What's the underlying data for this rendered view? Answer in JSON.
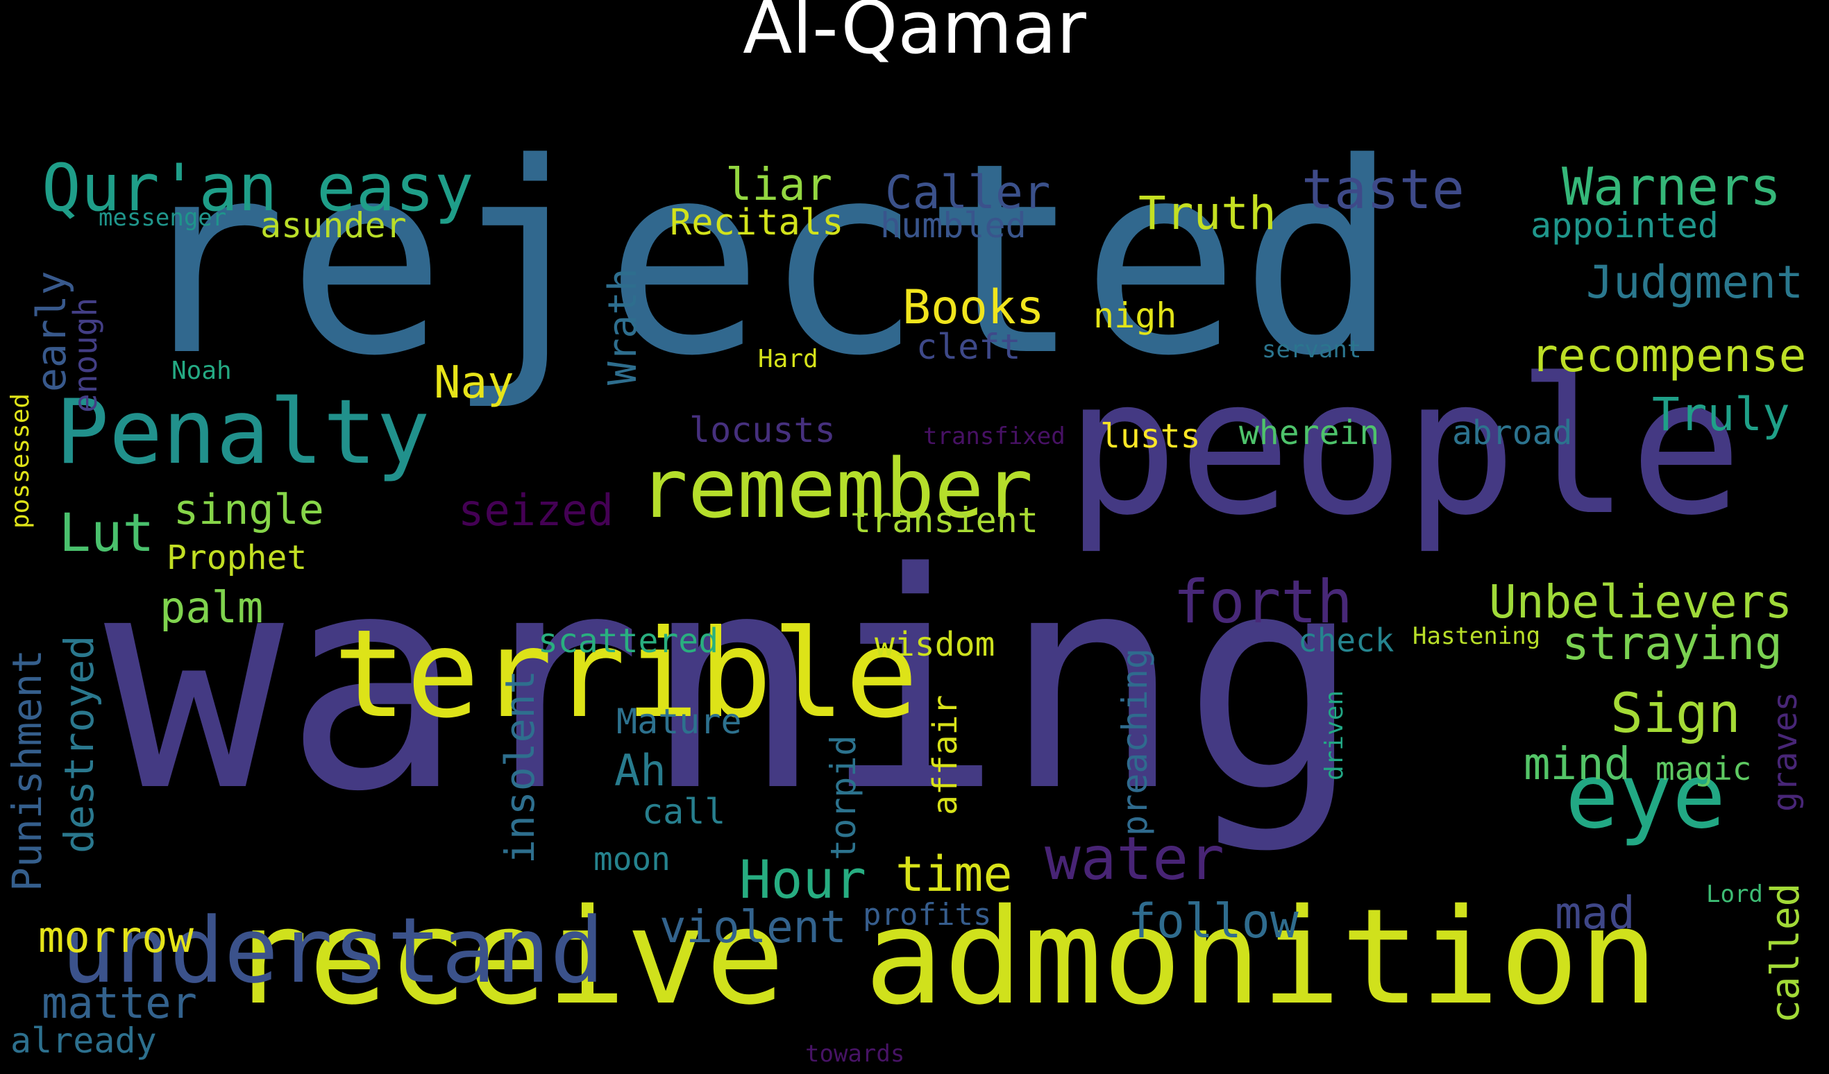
{
  "title": "Al-Qamar",
  "words": [
    {
      "text": "rejected",
      "color": "#31688e",
      "vertical": false
    },
    {
      "text": "warning",
      "color": "#443a83",
      "vertical": false
    },
    {
      "text": "people",
      "color": "#443983",
      "vertical": false
    },
    {
      "text": "receive admonition",
      "color": "#d0e11c",
      "vertical": false
    },
    {
      "text": "terrible",
      "color": "#dde318",
      "vertical": false
    },
    {
      "text": "understand",
      "color": "#3b528b",
      "vertical": false
    },
    {
      "text": "Penalty",
      "color": "#21918c",
      "vertical": false
    },
    {
      "text": "remember",
      "color": "#b5de2b",
      "vertical": false
    },
    {
      "text": "Qur'an easy",
      "color": "#1f9e89",
      "vertical": false
    },
    {
      "text": "eye",
      "color": "#22a884",
      "vertical": false
    },
    {
      "text": "forth",
      "color": "#482878",
      "vertical": false
    },
    {
      "text": "water",
      "color": "#482475",
      "vertical": false
    },
    {
      "text": "Warners",
      "color": "#35b779",
      "vertical": false
    },
    {
      "text": "taste",
      "color": "#3e4a89",
      "vertical": false
    },
    {
      "text": "Unbelievers",
      "color": "#a0da39",
      "vertical": false
    },
    {
      "text": "straying",
      "color": "#7ad151",
      "vertical": false
    },
    {
      "text": "Sign",
      "color": "#a5db36",
      "vertical": false
    },
    {
      "text": "Judgment",
      "color": "#2a788e",
      "vertical": false
    },
    {
      "text": "recompense",
      "color": "#bddf26",
      "vertical": false
    },
    {
      "text": "Truly",
      "color": "#1fa088",
      "vertical": false
    },
    {
      "text": "mind",
      "color": "#54c568",
      "vertical": false
    },
    {
      "text": "mad",
      "color": "#3f4788",
      "vertical": false
    },
    {
      "text": "Hour",
      "color": "#27ad81",
      "vertical": false
    },
    {
      "text": "time",
      "color": "#d8e219",
      "vertical": false
    },
    {
      "text": "follow",
      "color": "#2f6c8e",
      "vertical": false
    },
    {
      "text": "violent",
      "color": "#33638d",
      "vertical": false
    },
    {
      "text": "morrow",
      "color": "#e5e419",
      "vertical": false
    },
    {
      "text": "matter",
      "color": "#33628d",
      "vertical": false
    },
    {
      "text": "Lut",
      "color": "#4ac16d",
      "vertical": false
    },
    {
      "text": "single",
      "color": "#86d549",
      "vertical": false
    },
    {
      "text": "palm",
      "color": "#7fd34e",
      "vertical": false
    },
    {
      "text": "Books",
      "color": "#f1e51d",
      "vertical": false
    },
    {
      "text": "Caller",
      "color": "#3b518b",
      "vertical": false
    },
    {
      "text": "Truth",
      "color": "#c5e021",
      "vertical": false
    },
    {
      "text": "liar",
      "color": "#93d741",
      "vertical": false
    },
    {
      "text": "Nay",
      "color": "#e7e419",
      "vertical": false
    },
    {
      "text": "seized",
      "color": "#440154",
      "vertical": false
    },
    {
      "text": "Ah",
      "color": "#287c8e",
      "vertical": false
    },
    {
      "text": "Recitals",
      "color": "#d2e21b",
      "vertical": false
    },
    {
      "text": "asunder",
      "color": "#bade28",
      "vertical": false
    },
    {
      "text": "humbled",
      "color": "#39558c",
      "vertical": false
    },
    {
      "text": "cleft",
      "color": "#3e4989",
      "vertical": false
    },
    {
      "text": "nigh",
      "color": "#e2e418",
      "vertical": false
    },
    {
      "text": "appointed",
      "color": "#1f968b",
      "vertical": false
    },
    {
      "text": "lusts",
      "color": "#fde725",
      "vertical": false
    },
    {
      "text": "wherein",
      "color": "#4ec36b",
      "vertical": false
    },
    {
      "text": "abroad",
      "color": "#2c738e",
      "vertical": false
    },
    {
      "text": "locusts",
      "color": "#46307e",
      "vertical": false
    },
    {
      "text": "transient",
      "color": "#a8db34",
      "vertical": false
    },
    {
      "text": "Prophet",
      "color": "#c2df23",
      "vertical": false
    },
    {
      "text": "scattered",
      "color": "#29af7f",
      "vertical": false
    },
    {
      "text": "wisdom",
      "color": "#cde11d",
      "vertical": false
    },
    {
      "text": "check",
      "color": "#25848e",
      "vertical": false
    },
    {
      "text": "Hastening",
      "color": "#b8de29",
      "vertical": false
    },
    {
      "text": "magic",
      "color": "#5ec962",
      "vertical": false
    },
    {
      "text": "Mature",
      "color": "#2d718e",
      "vertical": false
    },
    {
      "text": "call",
      "color": "#277f8e",
      "vertical": false
    },
    {
      "text": "moon",
      "color": "#25838e",
      "vertical": false
    },
    {
      "text": "profits",
      "color": "#365d8d",
      "vertical": false
    },
    {
      "text": "already",
      "color": "#2d708e",
      "vertical": false
    },
    {
      "text": "towards",
      "color": "#471365",
      "vertical": false
    },
    {
      "text": "messenger",
      "color": "#1f958b",
      "vertical": false
    },
    {
      "text": "Noah",
      "color": "#24aa83",
      "vertical": false
    },
    {
      "text": "Hard",
      "color": "#d5e21a",
      "vertical": false
    },
    {
      "text": "servant",
      "color": "#2b758e",
      "vertical": false
    },
    {
      "text": "transfixed",
      "color": "#471164",
      "vertical": false
    },
    {
      "text": "Lord",
      "color": "#3dbc74",
      "vertical": false
    },
    {
      "text": "Punishment",
      "color": "#355f8d",
      "vertical": true
    },
    {
      "text": "destroyed",
      "color": "#2a788e",
      "vertical": true
    },
    {
      "text": "early",
      "color": "#38598c",
      "vertical": true
    },
    {
      "text": "enough",
      "color": "#433e85",
      "vertical": true
    },
    {
      "text": "possessed",
      "color": "#dfe318",
      "vertical": true
    },
    {
      "text": "Wrath",
      "color": "#2e6e8e",
      "vertical": true
    },
    {
      "text": "insolent",
      "color": "#2e6f8e",
      "vertical": true
    },
    {
      "text": "torpid",
      "color": "#2c738e",
      "vertical": true
    },
    {
      "text": "affair",
      "color": "#d8e219",
      "vertical": true
    },
    {
      "text": "preaching",
      "color": "#2f6b8e",
      "vertical": true
    },
    {
      "text": "driven",
      "color": "#22a785",
      "vertical": true
    },
    {
      "text": "called",
      "color": "#a2da37",
      "vertical": true
    },
    {
      "text": "graves",
      "color": "#482677",
      "vertical": true
    }
  ]
}
